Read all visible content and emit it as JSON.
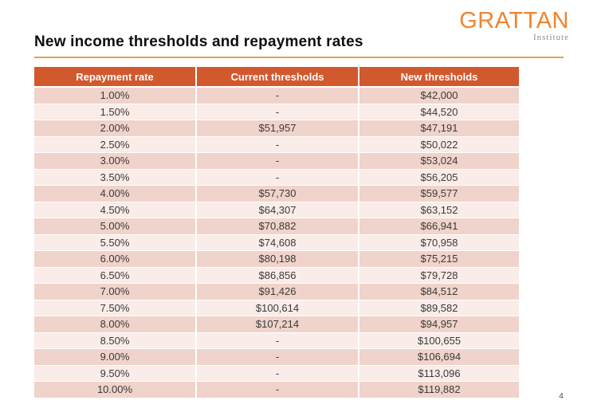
{
  "slide": {
    "title": "New income thresholds and repayment rates",
    "page_number": "4"
  },
  "logo": {
    "text": "GRATTAN",
    "subtitle": "Institute"
  },
  "colors": {
    "header_orange": "#d2582e",
    "row_dark_pink": "#f0d3ca",
    "row_light_pink": "#faece8",
    "logo_orange": "#f0842e",
    "title_rule_tan": "#e0a352"
  },
  "chart_data": {
    "type": "table",
    "title": "New income thresholds and repayment rates",
    "columns": [
      "Repayment rate",
      "Current thresholds",
      "New thresholds"
    ],
    "rows": [
      [
        "1.00%",
        "-",
        "$42,000"
      ],
      [
        "1.50%",
        "-",
        "$44,520"
      ],
      [
        "2.00%",
        "$51,957",
        "$47,191"
      ],
      [
        "2.50%",
        "-",
        "$50,022"
      ],
      [
        "3.00%",
        "-",
        "$53,024"
      ],
      [
        "3.50%",
        "-",
        "$56,205"
      ],
      [
        "4.00%",
        "$57,730",
        "$59,577"
      ],
      [
        "4.50%",
        "$64,307",
        "$63,152"
      ],
      [
        "5.00%",
        "$70,882",
        "$66,941"
      ],
      [
        "5.50%",
        "$74,608",
        "$70,958"
      ],
      [
        "6.00%",
        "$80,198",
        "$75,215"
      ],
      [
        "6.50%",
        "$86,856",
        "$79,728"
      ],
      [
        "7.00%",
        "$91,426",
        "$84,512"
      ],
      [
        "7.50%",
        "$100,614",
        "$89,582"
      ],
      [
        "8.00%",
        "$107,214",
        "$94,957"
      ],
      [
        "8.50%",
        "-",
        "$100,655"
      ],
      [
        "9.00%",
        "-",
        "$106,694"
      ],
      [
        "9.50%",
        "-",
        "$113,096"
      ],
      [
        "10.00%",
        "-",
        "$119,882"
      ]
    ]
  }
}
